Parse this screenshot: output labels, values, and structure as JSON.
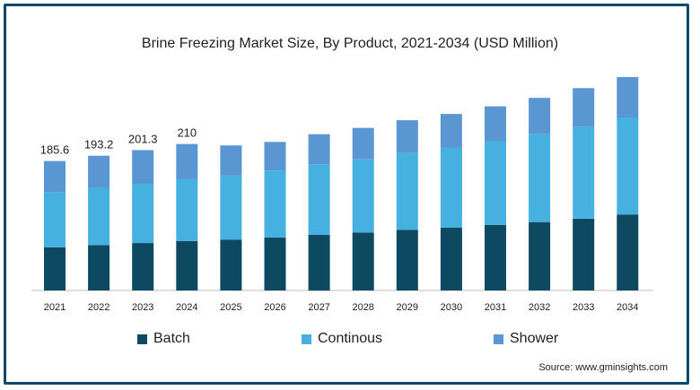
{
  "chart_data": {
    "type": "bar",
    "stacked": true,
    "title": "Brine Freezing Market Size, By Product, 2021-2034 (USD Million)",
    "categories": [
      "2021",
      "2022",
      "2023",
      "2024",
      "2025",
      "2026",
      "2027",
      "2028",
      "2029",
      "2030",
      "2031",
      "2032",
      "2033",
      "2034"
    ],
    "series": [
      {
        "name": "Batch",
        "color": "#0d4a62",
        "values": [
          62,
          65,
          68,
          71,
          73,
          76,
          80,
          83,
          87,
          90,
          94,
          98,
          103,
          109
        ]
      },
      {
        "name": "Continous",
        "color": "#46b0e0",
        "values": [
          79,
          82,
          85,
          89,
          92,
          96,
          101,
          105,
          110,
          115,
          120,
          126,
          132,
          139
        ]
      },
      {
        "name": "Shower",
        "color": "#5a96d2",
        "values": [
          44.6,
          46.2,
          48.3,
          50,
          43,
          41,
          43,
          45,
          47,
          48,
          50,
          52,
          55,
          58
        ]
      }
    ],
    "totals_labels": [
      "185.6",
      "193.2",
      "201.3",
      "210"
    ],
    "ylim": [
      0,
      320
    ],
    "xlabel": "",
    "ylabel": "",
    "grid": false,
    "legend_position": "bottom"
  },
  "source_text": "Source: www.gminsights.com"
}
